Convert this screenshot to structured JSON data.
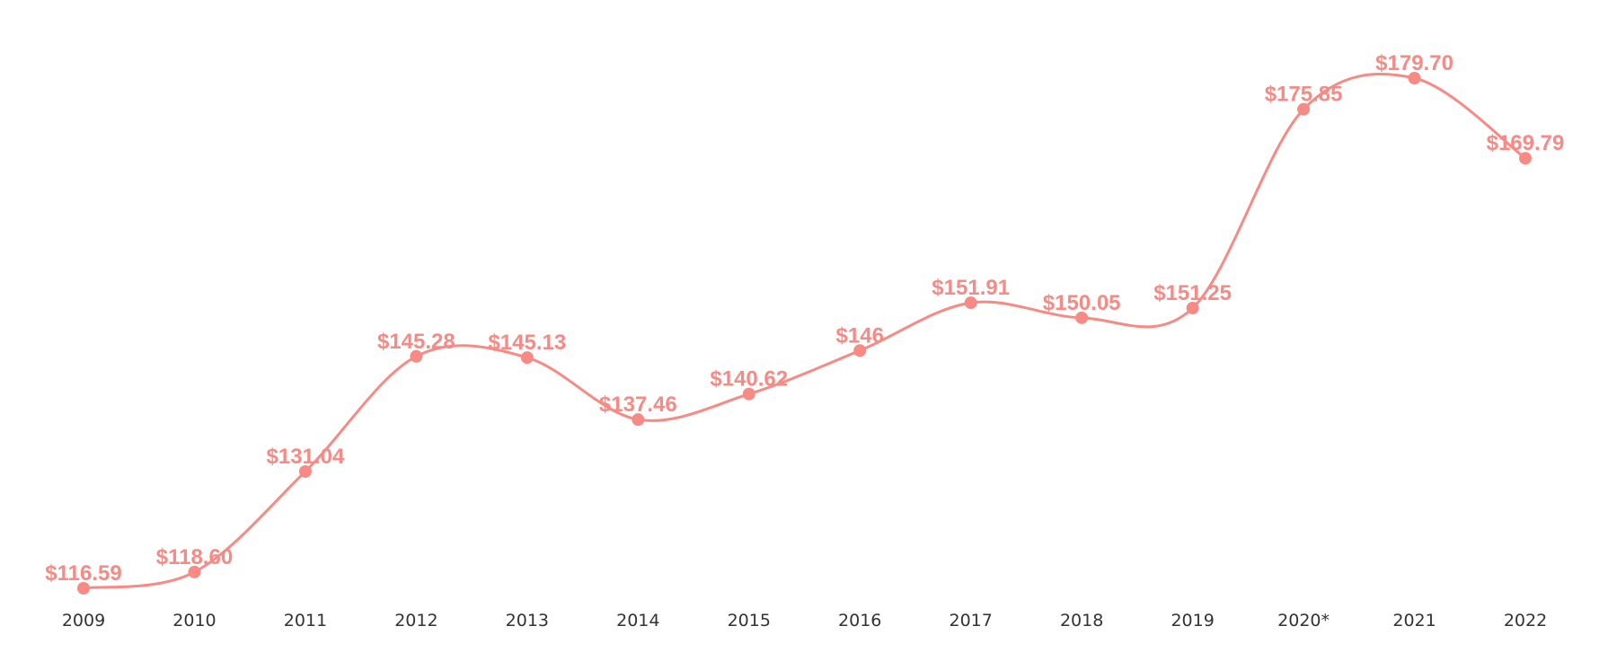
{
  "chart_data": {
    "type": "line",
    "categories": [
      "2009",
      "2010",
      "2011",
      "2012",
      "2013",
      "2014",
      "2015",
      "2016",
      "2017",
      "2018",
      "2019",
      "2020*",
      "2021",
      "2022"
    ],
    "series": [
      {
        "values": [
          116.59,
          118.6,
          131.04,
          145.28,
          145.13,
          137.46,
          140.62,
          146,
          151.91,
          150.05,
          151.25,
          175.85,
          179.7,
          169.79
        ],
        "labels": [
          "$116.59",
          "$118.60",
          "$131.04",
          "$145.28",
          "$145.13",
          "$137.46",
          "$140.62",
          "$146",
          "$151.91",
          "$150.05",
          "$151.25",
          "$175.85",
          "$179.70",
          "$169.79"
        ]
      }
    ],
    "ylim": [
      116.59,
      179.7
    ],
    "grid": false,
    "legend": "none",
    "colors": {
      "series": "#f78a84",
      "tick_label": "#333333"
    }
  }
}
